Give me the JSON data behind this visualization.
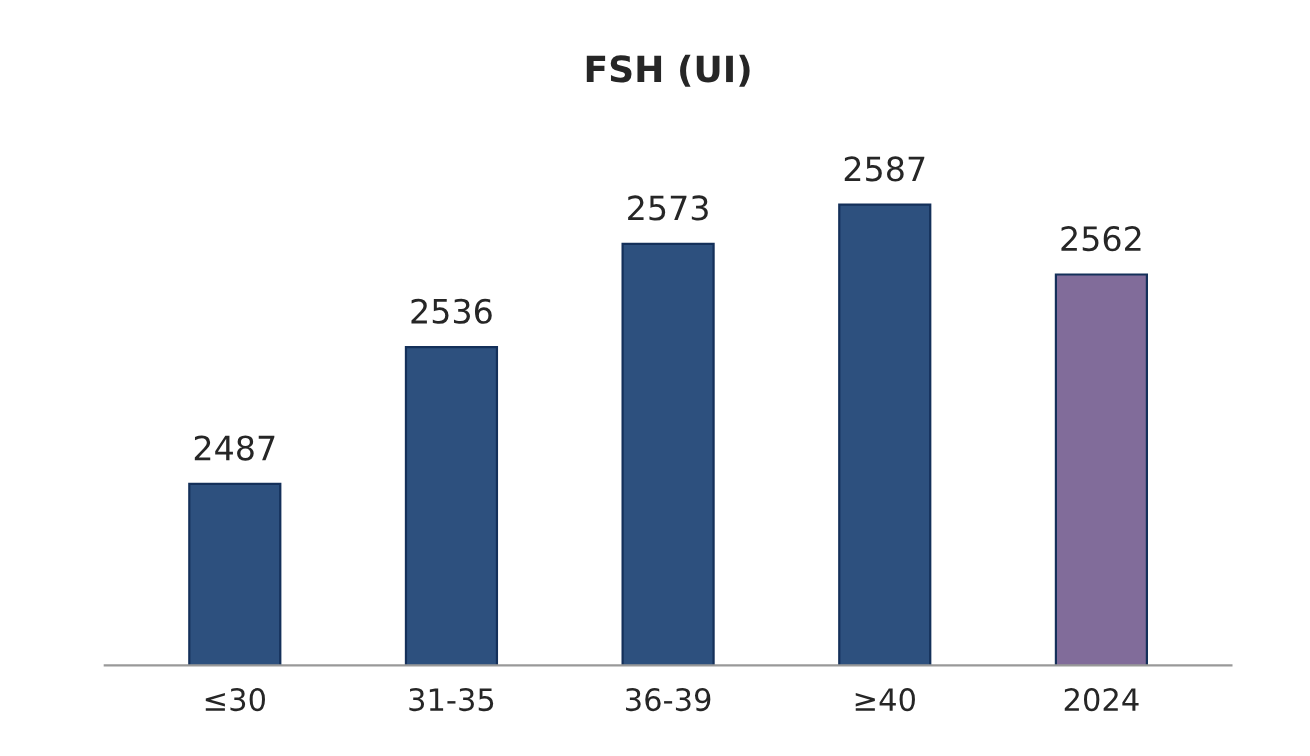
{
  "chart_data": {
    "type": "bar",
    "title": "FSH (UI)",
    "categories": [
      "≤30",
      "31-35",
      "36-39",
      "≥40",
      "2024"
    ],
    "values": [
      2487,
      2536,
      2573,
      2587,
      2562
    ],
    "colors": [
      "#1f4e8c",
      "#1f4e8c",
      "#1f4e8c",
      "#1f4e8c",
      "#8064a2"
    ],
    "data_labels": true,
    "grid": false,
    "legend": false
  }
}
